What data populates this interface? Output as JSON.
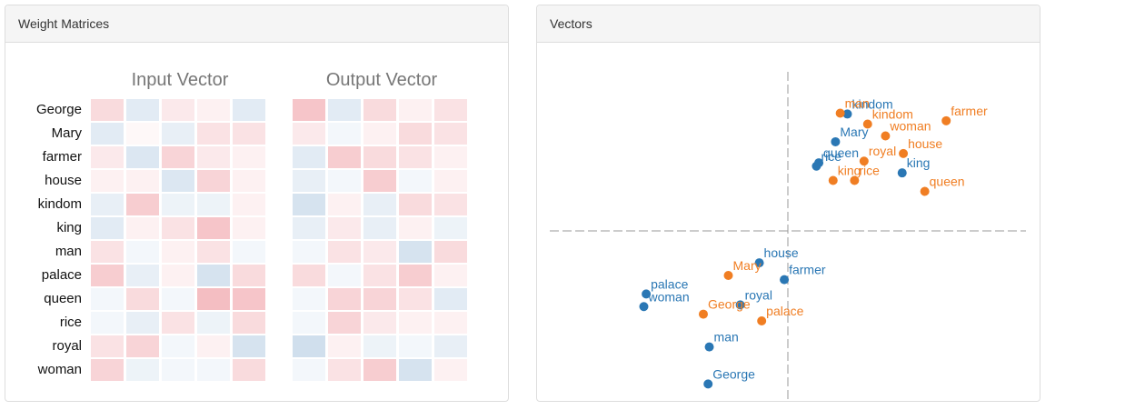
{
  "left_panel": {
    "title": "Weight Matrices",
    "input_title": "Input Vector",
    "output_title": "Output Vector",
    "words": [
      "George",
      "Mary",
      "farmer",
      "house",
      "kindom",
      "king",
      "man",
      "palace",
      "queen",
      "rice",
      "royal",
      "woman"
    ],
    "input_matrix": [
      [
        0.25,
        -0.25,
        0.15,
        0.1,
        -0.25
      ],
      [
        -0.25,
        0.05,
        -0.2,
        0.2,
        0.2
      ],
      [
        0.15,
        -0.3,
        0.3,
        0.15,
        0.1
      ],
      [
        0.1,
        0.1,
        -0.3,
        0.3,
        0.1
      ],
      [
        -0.2,
        0.35,
        -0.15,
        -0.15,
        0.1
      ],
      [
        -0.25,
        0.1,
        0.2,
        0.4,
        0.1
      ],
      [
        0.2,
        -0.1,
        0.1,
        0.2,
        -0.1
      ],
      [
        0.35,
        -0.2,
        0.1,
        -0.35,
        0.25
      ],
      [
        -0.1,
        0.25,
        -0.1,
        0.45,
        0.4
      ],
      [
        -0.1,
        -0.2,
        0.2,
        -0.15,
        0.25
      ],
      [
        0.2,
        0.3,
        -0.1,
        0.1,
        -0.35
      ],
      [
        0.3,
        -0.15,
        -0.1,
        -0.1,
        0.25
      ]
    ],
    "output_matrix": [
      [
        0.4,
        -0.25,
        0.25,
        0.1,
        0.2
      ],
      [
        0.15,
        -0.1,
        0.1,
        0.25,
        0.2
      ],
      [
        -0.25,
        0.35,
        0.25,
        0.2,
        0.1
      ],
      [
        -0.2,
        -0.1,
        0.35,
        -0.1,
        0.1
      ],
      [
        -0.35,
        0.1,
        -0.2,
        0.25,
        0.2
      ],
      [
        -0.2,
        0.15,
        -0.2,
        0.1,
        -0.15
      ],
      [
        -0.1,
        0.2,
        0.15,
        -0.35,
        0.25
      ],
      [
        0.25,
        -0.1,
        0.2,
        0.35,
        0.1
      ],
      [
        -0.1,
        0.3,
        0.3,
        0.2,
        -0.25
      ],
      [
        -0.1,
        0.3,
        0.15,
        0.1,
        0.1
      ],
      [
        -0.4,
        0.1,
        -0.15,
        -0.1,
        -0.2
      ],
      [
        -0.1,
        0.2,
        0.35,
        -0.35,
        0.1
      ]
    ]
  },
  "right_panel": {
    "title": "Vectors",
    "colors": {
      "input": "#2a77b4",
      "output": "#f07e23",
      "axis": "#999999"
    },
    "chart_data": {
      "type": "scatter",
      "xlim": [
        -1,
        1
      ],
      "ylim": [
        -1,
        1
      ],
      "series": [
        {
          "points": [
            {
              "label": "kindom",
              "x": 0.25,
              "y": 0.695
            },
            {
              "label": "Mary",
              "x": 0.2,
              "y": 0.53
            },
            {
              "label": "queen",
              "x": 0.13,
              "y": 0.405
            },
            {
              "label": "rice",
              "x": 0.12,
              "y": 0.385
            },
            {
              "label": "king",
              "x": 0.48,
              "y": 0.345
            },
            {
              "label": "house",
              "x": -0.12,
              "y": -0.19
            },
            {
              "label": "farmer",
              "x": -0.015,
              "y": -0.29
            },
            {
              "label": "palace",
              "x": -0.595,
              "y": -0.375
            },
            {
              "label": "woman",
              "x": -0.605,
              "y": -0.45
            },
            {
              "label": "royal",
              "x": -0.2,
              "y": -0.44
            },
            {
              "label": "man",
              "x": -0.33,
              "y": -0.69
            },
            {
              "label": "George",
              "x": -0.335,
              "y": -0.91
            }
          ]
        },
        {
          "points": [
            {
              "label": "man",
              "x": 0.22,
              "y": 0.7
            },
            {
              "label": "kindom",
              "x": 0.335,
              "y": 0.635
            },
            {
              "label": "farmer",
              "x": 0.665,
              "y": 0.655
            },
            {
              "label": "woman",
              "x": 0.41,
              "y": 0.565
            },
            {
              "label": "house",
              "x": 0.485,
              "y": 0.46
            },
            {
              "label": "royal",
              "x": 0.32,
              "y": 0.415
            },
            {
              "label": "king",
              "x": 0.19,
              "y": 0.3
            },
            {
              "label": "rice",
              "x": 0.28,
              "y": 0.3
            },
            {
              "label": "queen",
              "x": 0.575,
              "y": 0.235
            },
            {
              "label": "Mary",
              "x": -0.25,
              "y": -0.265
            },
            {
              "label": "George",
              "x": -0.355,
              "y": -0.495
            },
            {
              "label": "palace",
              "x": -0.11,
              "y": -0.535
            }
          ]
        }
      ]
    }
  }
}
